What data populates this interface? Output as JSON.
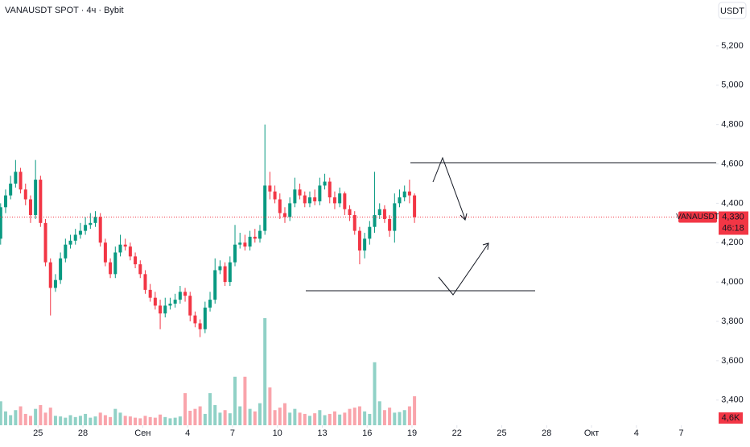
{
  "chart_data": {
    "type": "candlestick",
    "title": "VANAUSDT SPOT · 4ч · Bybit",
    "currency": "USDT",
    "ticker": "VANAUSDT",
    "up_color": "#089981",
    "down_color": "#f23645",
    "x": [
      -60,
      -52,
      -44,
      -36,
      -28,
      -20,
      -12,
      -4,
      4,
      12,
      20,
      28,
      36,
      44,
      52,
      60,
      68,
      76,
      84,
      92,
      100,
      108,
      116,
      124,
      132,
      140,
      148,
      156,
      164,
      172,
      180,
      188,
      196,
      204,
      212,
      220,
      228,
      236,
      244,
      252,
      260,
      268,
      276,
      284,
      292,
      300,
      308,
      316,
      324,
      332,
      340,
      348,
      356,
      364,
      372,
      380,
      388,
      396,
      404,
      412,
      420,
      428,
      436,
      444,
      452,
      460,
      468,
      476,
      484,
      492,
      500,
      508,
      516,
      524,
      532,
      540,
      548,
      556,
      564,
      572,
      580,
      588,
      596,
      604
    ],
    "open": [
      4220,
      4380,
      4440,
      4500,
      4560,
      4470,
      4420,
      4340,
      4520,
      4300,
      4100,
      3970,
      4010,
      4120,
      4190,
      4210,
      4240,
      4260,
      4290,
      4300,
      4330,
      4200,
      4100,
      4040,
      4150,
      4190,
      4180,
      4130,
      4090,
      4040,
      3960,
      3920,
      3880,
      3840,
      3880,
      3890,
      3910,
      3950,
      3930,
      3830,
      3790,
      3760,
      3870,
      3910,
      4060,
      4080,
      4000,
      4100,
      4190,
      4200,
      4180,
      4230,
      4220,
      4260,
      4490,
      4460,
      4420,
      4350,
      4330,
      4400,
      4470,
      4440,
      4400,
      4430,
      4410,
      4490,
      4510,
      4430,
      4400,
      4450,
      4370,
      4340,
      4260,
      4160,
      4220,
      4280,
      4340,
      4370,
      4320,
      4260,
      4400,
      4430,
      4460,
      4440
    ],
    "high": [
      4400,
      4470,
      4540,
      4620,
      4580,
      4500,
      4440,
      4620,
      4540,
      4320,
      4120,
      4040,
      4150,
      4220,
      4240,
      4270,
      4300,
      4330,
      4350,
      4360,
      4350,
      4220,
      4120,
      4180,
      4240,
      4220,
      4200,
      4150,
      4110,
      4060,
      3990,
      3950,
      3910,
      3920,
      3920,
      3940,
      3980,
      3970,
      3950,
      3850,
      3810,
      3900,
      3950,
      4120,
      4110,
      4100,
      4130,
      4290,
      4250,
      4240,
      4260,
      4270,
      4290,
      4800,
      4560,
      4490,
      4450,
      4380,
      4430,
      4530,
      4500,
      4460,
      4460,
      4470,
      4530,
      4550,
      4530,
      4460,
      4480,
      4460,
      4390,
      4360,
      4280,
      4250,
      4310,
      4560,
      4400,
      4390,
      4340,
      4450,
      4470,
      4490,
      4520,
      4450
    ],
    "low": [
      4190,
      4350,
      4420,
      4480,
      4450,
      4390,
      4300,
      4320,
      4280,
      4080,
      3830,
      3950,
      3990,
      4100,
      4170,
      4190,
      4220,
      4240,
      4270,
      4280,
      4180,
      4080,
      4020,
      4020,
      4130,
      4160,
      4110,
      4070,
      4020,
      3940,
      3900,
      3860,
      3760,
      3820,
      3860,
      3870,
      3890,
      3900,
      3800,
      3770,
      3720,
      3740,
      3850,
      3890,
      4040,
      3980,
      3980,
      4080,
      4170,
      4160,
      4160,
      4200,
      4200,
      4240,
      4420,
      4400,
      4320,
      4300,
      4310,
      4380,
      4420,
      4380,
      4380,
      4390,
      4390,
      4470,
      4400,
      4370,
      4380,
      4340,
      4310,
      4240,
      4090,
      4120,
      4190,
      4250,
      4320,
      4300,
      4230,
      4200,
      4380,
      4410,
      4400,
      4300
    ],
    "close": [
      4380,
      4440,
      4500,
      4560,
      4470,
      4420,
      4340,
      4520,
      4300,
      4100,
      3970,
      4010,
      4120,
      4190,
      4210,
      4240,
      4260,
      4290,
      4300,
      4330,
      4200,
      4100,
      4040,
      4150,
      4190,
      4180,
      4130,
      4090,
      4040,
      3960,
      3920,
      3880,
      3840,
      3880,
      3890,
      3910,
      3950,
      3930,
      3830,
      3790,
      3760,
      3870,
      3910,
      4060,
      4080,
      4000,
      4100,
      4190,
      4200,
      4180,
      4230,
      4220,
      4260,
      4490,
      4460,
      4420,
      4350,
      4330,
      4400,
      4470,
      4440,
      4400,
      4430,
      4410,
      4490,
      4510,
      4430,
      4400,
      4450,
      4370,
      4340,
      4260,
      4160,
      4220,
      4280,
      4340,
      4370,
      4320,
      4260,
      4400,
      4430,
      4460,
      4440,
      4330
    ],
    "volume": [
      3800,
      2200,
      1600,
      2400,
      3000,
      1800,
      1500,
      2600,
      3200,
      2000,
      2800,
      1500,
      1400,
      1200,
      1600,
      1300,
      1500,
      1800,
      1200,
      1400,
      2000,
      1600,
      1300,
      2600,
      2000,
      1500,
      1400,
      1200,
      1100,
      1500,
      1300,
      1200,
      1700,
      1300,
      1100,
      1200,
      1400,
      5100,
      2300,
      2600,
      3000,
      1800,
      5100,
      3200,
      2000,
      2400,
      1900,
      7700,
      3000,
      7700,
      2600,
      2200,
      3500,
      17000,
      6000,
      2400,
      2800,
      3500,
      2000,
      2600,
      2000,
      1800,
      1500,
      1900,
      2400,
      1600,
      1800,
      2200,
      1700,
      2000,
      2600,
      2800,
      3000,
      2200,
      1800,
      10000,
      3800,
      2400,
      2800,
      2000,
      2100,
      2400,
      3000,
      4600
    ],
    "last_price": {
      "value": 4330,
      "label": "4,330"
    },
    "countdown": "46:18",
    "last_volume": {
      "value": 4600,
      "label": "4,6K"
    },
    "xlim": [
      -61,
      1088
    ],
    "xticks": [
      {
        "value": 0,
        "label": "25"
      },
      {
        "value": 72,
        "label": "28"
      },
      {
        "value": 168,
        "label": "Сен"
      },
      {
        "value": 240,
        "label": "4"
      },
      {
        "value": 312,
        "label": "7"
      },
      {
        "value": 384,
        "label": "10"
      },
      {
        "value": 456,
        "label": "13"
      },
      {
        "value": 528,
        "label": "16"
      },
      {
        "value": 600,
        "label": "19"
      },
      {
        "value": 672,
        "label": "22"
      },
      {
        "value": 744,
        "label": "25"
      },
      {
        "value": 816,
        "label": "28"
      },
      {
        "value": 888,
        "label": "Окт"
      },
      {
        "value": 960,
        "label": "4"
      },
      {
        "value": 1032,
        "label": "7"
      }
    ],
    "ylim": [
      3272,
      5433
    ],
    "yticks": [
      {
        "value": 3400,
        "label": "3,400"
      },
      {
        "value": 3600,
        "label": "3,600"
      },
      {
        "value": 3800,
        "label": "3,800"
      },
      {
        "value": 4000,
        "label": "4,000"
      },
      {
        "value": 4200,
        "label": "4,200"
      },
      {
        "value": 4400,
        "label": "4,400"
      },
      {
        "value": 4600,
        "label": "4,600"
      },
      {
        "value": 4800,
        "label": "4,800"
      },
      {
        "value": 5000,
        "label": "5,000"
      },
      {
        "value": 5200,
        "label": "5,200"
      }
    ],
    "vlim": [
      0,
      67500
    ]
  }
}
